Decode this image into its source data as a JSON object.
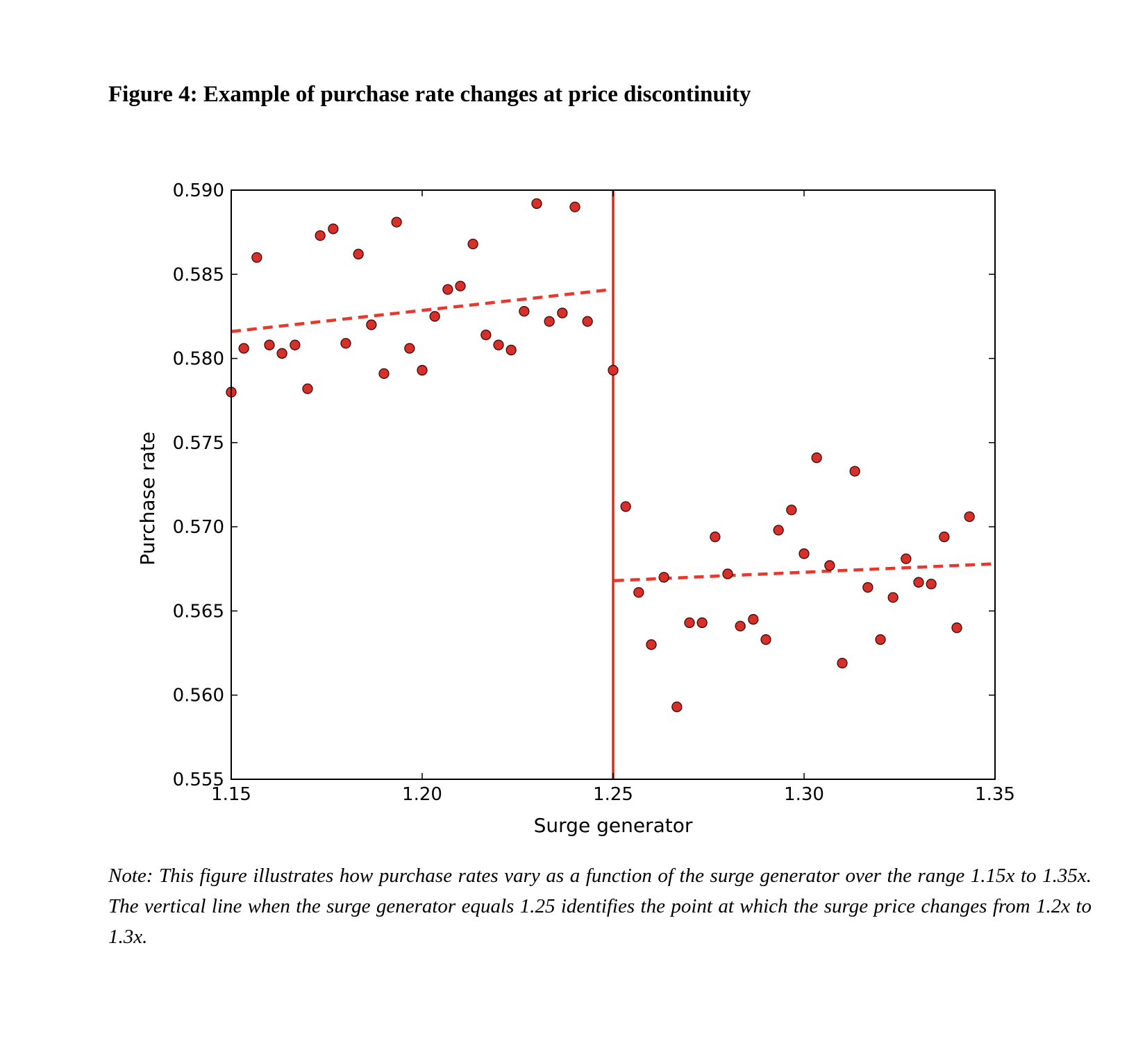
{
  "figure": {
    "title": "Figure 4: Example of purchase rate changes at price discontinuity",
    "note": "Note: This figure illustrates how purchase rates vary as a function of the surge generator over the range 1.15x to 1.35x. The vertical line when the surge generator equals 1.25 identifies the point at which the surge price changes from 1.2x to 1.3x."
  },
  "colors": {
    "points": "#d7302a",
    "point_edge": "#3a0a08",
    "fit_line": "#e8382e",
    "vline": "#e0281f",
    "axes": "#000000"
  },
  "chart_data": {
    "type": "scatter",
    "xlabel": "Surge generator",
    "ylabel": "Purchase rate",
    "xlim": [
      1.15,
      1.35
    ],
    "ylim": [
      0.555,
      0.59
    ],
    "x_ticks": [
      1.15,
      1.2,
      1.25,
      1.3,
      1.35
    ],
    "x_tick_labels": [
      "1.15",
      "1.20",
      "1.25",
      "1.30",
      "1.35"
    ],
    "y_ticks": [
      0.555,
      0.56,
      0.565,
      0.57,
      0.575,
      0.58,
      0.585,
      0.59
    ],
    "y_tick_labels": [
      "0.555",
      "0.560",
      "0.565",
      "0.570",
      "0.575",
      "0.580",
      "0.585",
      "0.590"
    ],
    "grid": false,
    "discontinuity_x": 1.25,
    "fit_lines": [
      {
        "x": [
          1.15,
          1.2497
        ],
        "y": [
          0.5816,
          0.5841
        ]
      },
      {
        "x": [
          1.2503,
          1.35
        ],
        "y": [
          0.5668,
          0.5678
        ]
      }
    ],
    "points": [
      [
        1.15,
        0.578
      ],
      [
        1.1533,
        0.5806
      ],
      [
        1.1567,
        0.586
      ],
      [
        1.16,
        0.5808
      ],
      [
        1.1633,
        0.5803
      ],
      [
        1.1667,
        0.5808
      ],
      [
        1.17,
        0.5782
      ],
      [
        1.1733,
        0.5873
      ],
      [
        1.1767,
        0.5877
      ],
      [
        1.18,
        0.5809
      ],
      [
        1.1833,
        0.5862
      ],
      [
        1.1867,
        0.582
      ],
      [
        1.19,
        0.5791
      ],
      [
        1.1933,
        0.5881
      ],
      [
        1.1967,
        0.5806
      ],
      [
        1.2,
        0.5793
      ],
      [
        1.2033,
        0.5825
      ],
      [
        1.2067,
        0.5841
      ],
      [
        1.21,
        0.5843
      ],
      [
        1.2133,
        0.5868
      ],
      [
        1.2167,
        0.5814
      ],
      [
        1.22,
        0.5808
      ],
      [
        1.2233,
        0.5805
      ],
      [
        1.2267,
        0.5828
      ],
      [
        1.23,
        0.5892
      ],
      [
        1.2333,
        0.5822
      ],
      [
        1.2367,
        0.5827
      ],
      [
        1.24,
        0.589
      ],
      [
        1.2433,
        0.5822
      ],
      [
        1.25,
        0.5793
      ],
      [
        1.2533,
        0.5712
      ],
      [
        1.2567,
        0.5661
      ],
      [
        1.26,
        0.563
      ],
      [
        1.2633,
        0.567
      ],
      [
        1.2667,
        0.5593
      ],
      [
        1.27,
        0.5643
      ],
      [
        1.2733,
        0.5643
      ],
      [
        1.2767,
        0.5694
      ],
      [
        1.28,
        0.5672
      ],
      [
        1.2833,
        0.5641
      ],
      [
        1.2867,
        0.5645
      ],
      [
        1.29,
        0.5633
      ],
      [
        1.2933,
        0.5698
      ],
      [
        1.2967,
        0.571
      ],
      [
        1.3,
        0.5684
      ],
      [
        1.3033,
        0.5741
      ],
      [
        1.3067,
        0.5677
      ],
      [
        1.31,
        0.5619
      ],
      [
        1.3133,
        0.5733
      ],
      [
        1.3167,
        0.5664
      ],
      [
        1.32,
        0.5633
      ],
      [
        1.3233,
        0.5658
      ],
      [
        1.3267,
        0.5681
      ],
      [
        1.33,
        0.5667
      ],
      [
        1.3333,
        0.5666
      ],
      [
        1.3367,
        0.5694
      ],
      [
        1.34,
        0.564
      ],
      [
        1.3433,
        0.5706
      ]
    ]
  }
}
